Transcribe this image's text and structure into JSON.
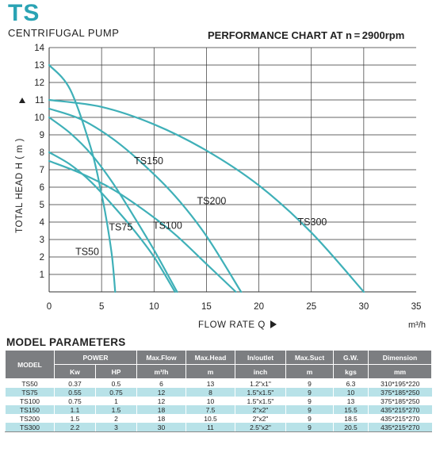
{
  "header": {
    "model_code": "TS",
    "product": "CENTRIFUGAL PUMP",
    "chart_heading": "PERFORMANCE CHART AT n = 2900rpm"
  },
  "colors": {
    "curve": "#3fb0b8",
    "grid": "#333333",
    "brand": "#2aa3b4",
    "table_header": "#7c7e81",
    "row_alt": "#b8e2e8"
  },
  "chart_data": {
    "type": "line",
    "title": "PERFORMANCE CHART AT n = 2900rpm",
    "xlabel": "FLOW RATE Q",
    "xunit": "m³/h",
    "ylabel": "TOTAL HEAD H ( m )",
    "xlim": [
      0,
      35
    ],
    "ylim": [
      0,
      14
    ],
    "xticks": [
      0,
      5,
      10,
      15,
      20,
      25,
      30,
      35
    ],
    "yticks": [
      1,
      2,
      3,
      4,
      5,
      6,
      7,
      8,
      9,
      10,
      11,
      12,
      13,
      14
    ],
    "grid": true,
    "series": [
      {
        "name": "TS50",
        "x": [
          0,
          2,
          4,
          5,
          5.5,
          6,
          6.3
        ],
        "y": [
          13,
          11.6,
          8.2,
          5.6,
          4,
          2,
          0
        ]
      },
      {
        "name": "TS75",
        "x": [
          0,
          2,
          4,
          6,
          8,
          10,
          12
        ],
        "y": [
          8,
          7.3,
          6.3,
          5,
          3.6,
          2,
          0
        ]
      },
      {
        "name": "TS100",
        "x": [
          0,
          2,
          4,
          6,
          8,
          10,
          12.2
        ],
        "y": [
          10,
          9.1,
          7.9,
          6.3,
          4.4,
          2.4,
          0
        ]
      },
      {
        "name": "TS150",
        "x": [
          0,
          3,
          6,
          9,
          12,
          15,
          17.8
        ],
        "y": [
          7.5,
          6.8,
          5.9,
          4.7,
          3.3,
          1.6,
          0
        ]
      },
      {
        "name": "TS200",
        "x": [
          0,
          3,
          6,
          9,
          12,
          15,
          18.3
        ],
        "y": [
          10.5,
          9.9,
          8.8,
          7.3,
          5.5,
          3.2,
          0
        ]
      },
      {
        "name": "TS300",
        "x": [
          0,
          5,
          10,
          15,
          20,
          25,
          30
        ],
        "y": [
          11,
          10.6,
          9.6,
          8.1,
          6.1,
          3.4,
          0
        ]
      }
    ],
    "curve_labels": [
      "TS50",
      "TS75",
      "TS100",
      "TS150",
      "TS200",
      "TS300"
    ]
  },
  "params": {
    "title": "MODEL PARAMETERS",
    "head": {
      "model": "MODEL",
      "power": "POWER",
      "max_flow": "Max.Flow",
      "max_head": "Max.Head",
      "in_outlet": "In/outlet",
      "max_suct": "Max.Suct",
      "gw": "G.W.",
      "dimension": "Dimension"
    },
    "units": {
      "kw": "Kw",
      "hp": "HP",
      "flow": "m³/h",
      "head": "m",
      "inlet": "inch",
      "suct": "m",
      "gw": "kgs",
      "dim": "mm"
    },
    "rows": [
      [
        "TS50",
        "0.37",
        "0.5",
        "6",
        "13",
        "1.2\"x1\"",
        "9",
        "6.3",
        "310*195*220"
      ],
      [
        "TS75",
        "0.55",
        "0.75",
        "12",
        "8",
        "1.5\"x1.5\"",
        "9",
        "10",
        "375*185*250"
      ],
      [
        "TS100",
        "0.75",
        "1",
        "12",
        "10",
        "1.5\"x1.5\"",
        "9",
        "13",
        "375*185*250"
      ],
      [
        "TS150",
        "1.1",
        "1.5",
        "18",
        "7.5",
        "2\"x2\"",
        "9",
        "15.5",
        "435*215*270"
      ],
      [
        "TS200",
        "1.5",
        "2",
        "18",
        "10.5",
        "2\"x2\"",
        "9",
        "18.5",
        "435*215*270"
      ],
      [
        "TS300",
        "2.2",
        "3",
        "30",
        "11",
        "2.5\"x2\"",
        "9",
        "20.5",
        "435*215*270"
      ]
    ]
  }
}
